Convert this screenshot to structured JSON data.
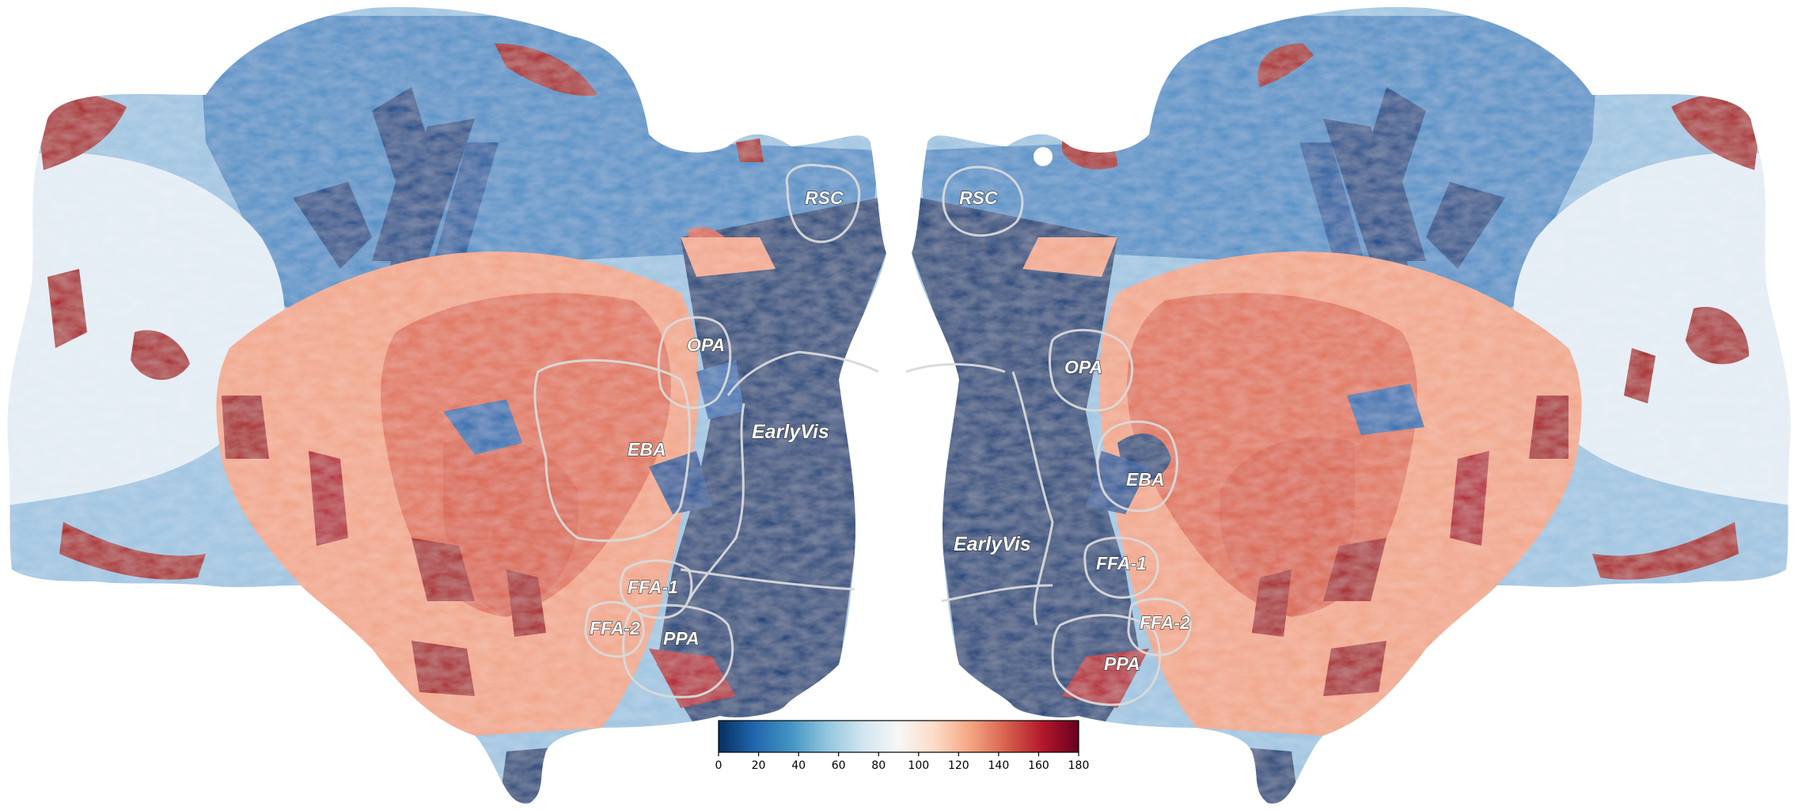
{
  "figure": {
    "left_hemisphere": {
      "roi_labels": [
        {
          "id": "rsc",
          "text": "RSC"
        },
        {
          "id": "opa",
          "text": "OPA"
        },
        {
          "id": "eba",
          "text": "EBA"
        },
        {
          "id": "earlyvis",
          "text": "EarlyVis"
        },
        {
          "id": "ffa1",
          "text": "FFA-1"
        },
        {
          "id": "ffa2",
          "text": "FFA-2"
        },
        {
          "id": "ppa",
          "text": "PPA"
        }
      ]
    },
    "right_hemisphere": {
      "roi_labels": [
        {
          "id": "rsc",
          "text": "RSC"
        },
        {
          "id": "opa",
          "text": "OPA"
        },
        {
          "id": "eba",
          "text": "EBA"
        },
        {
          "id": "earlyvis",
          "text": "EarlyVis"
        },
        {
          "id": "ffa1",
          "text": "FFA-1"
        },
        {
          "id": "ffa2",
          "text": "FFA-2"
        },
        {
          "id": "ppa",
          "text": "PPA"
        }
      ]
    },
    "colorbar": {
      "colormap": "RdBu_r",
      "min": 0,
      "max": 180,
      "ticks": [
        "0",
        "20",
        "40",
        "60",
        "80",
        "100",
        "120",
        "140",
        "160",
        "180"
      ],
      "colors": [
        "#053061",
        "#2166ac",
        "#4393c3",
        "#92c5de",
        "#d1e5f0",
        "#f7f7f7",
        "#fddbc7",
        "#f4a582",
        "#d6604d",
        "#b2182b",
        "#67001f"
      ]
    },
    "palette": {
      "deep_blue": "#0b3f78",
      "mid_blue": "#3a7ab8",
      "light_blue": "#9cc3e0",
      "pale": "#e8eff5",
      "salmon": "#f2a68a",
      "coral": "#e0735a",
      "dark_red": "#a8131f"
    }
  }
}
